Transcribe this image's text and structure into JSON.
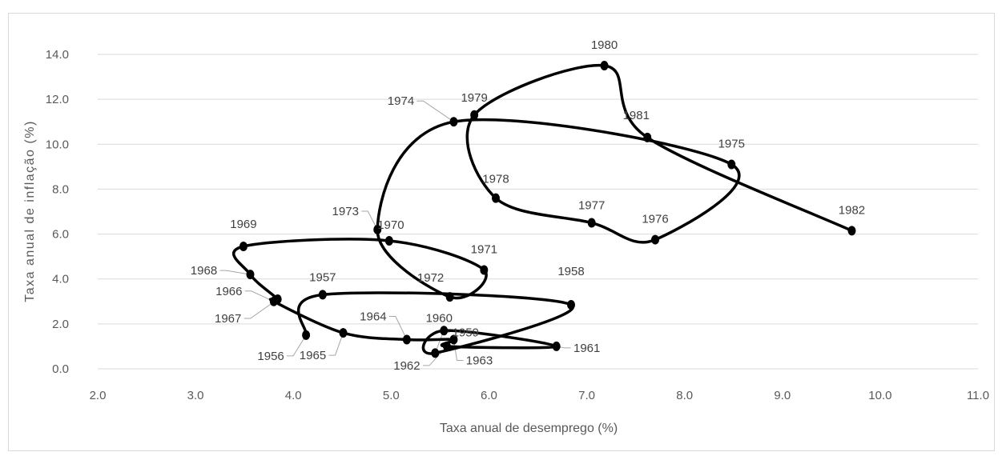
{
  "chart_data": {
    "type": "scatter",
    "title": "",
    "xlabel": "Taxa anual de desemprego (%)",
    "ylabel": "Taxa anual de inflação (%)",
    "xlim": [
      2.0,
      11.0
    ],
    "ylim": [
      0.0,
      14.0
    ],
    "x_ticks": [
      "2.0",
      "3.0",
      "4.0",
      "5.0",
      "6.0",
      "7.0",
      "8.0",
      "9.0",
      "10.0",
      "11.0"
    ],
    "y_ticks": [
      "0.0",
      "2.0",
      "4.0",
      "6.0",
      "8.0",
      "10.0",
      "12.0",
      "14.0"
    ],
    "grid": "horizontal",
    "line_smoothed": true,
    "points": [
      {
        "label": "1956",
        "x": 4.13,
        "y": 1.5
      },
      {
        "label": "1957",
        "x": 4.3,
        "y": 3.3
      },
      {
        "label": "1958",
        "x": 6.84,
        "y": 2.85
      },
      {
        "label": "1959",
        "x": 5.45,
        "y": 0.7
      },
      {
        "label": "1960",
        "x": 5.54,
        "y": 1.7
      },
      {
        "label": "1961",
        "x": 6.69,
        "y": 1.0
      },
      {
        "label": "1962",
        "x": 5.57,
        "y": 1.0
      },
      {
        "label": "1963",
        "x": 5.64,
        "y": 1.3
      },
      {
        "label": "1964",
        "x": 5.16,
        "y": 1.3
      },
      {
        "label": "1965",
        "x": 4.51,
        "y": 1.6
      },
      {
        "label": "1966",
        "x": 3.8,
        "y": 3.0
      },
      {
        "label": "1967",
        "x": 3.84,
        "y": 3.1
      },
      {
        "label": "1968",
        "x": 3.56,
        "y": 4.2
      },
      {
        "label": "1969",
        "x": 3.49,
        "y": 5.45
      },
      {
        "label": "1970",
        "x": 4.98,
        "y": 5.7
      },
      {
        "label": "1971",
        "x": 5.95,
        "y": 4.4
      },
      {
        "label": "1972",
        "x": 5.6,
        "y": 3.2
      },
      {
        "label": "1973",
        "x": 4.86,
        "y": 6.2
      },
      {
        "label": "1974",
        "x": 5.64,
        "y": 11.0
      },
      {
        "label": "1975",
        "x": 8.48,
        "y": 9.1
      },
      {
        "label": "1976",
        "x": 7.7,
        "y": 5.75
      },
      {
        "label": "1977",
        "x": 7.05,
        "y": 6.5
      },
      {
        "label": "1978",
        "x": 6.07,
        "y": 7.6
      },
      {
        "label": "1979",
        "x": 5.85,
        "y": 11.3
      },
      {
        "label": "1980",
        "x": 7.18,
        "y": 13.5
      },
      {
        "label": "1981",
        "x": 7.62,
        "y": 10.3
      },
      {
        "label": "1982",
        "x": 9.71,
        "y": 6.15
      }
    ]
  }
}
